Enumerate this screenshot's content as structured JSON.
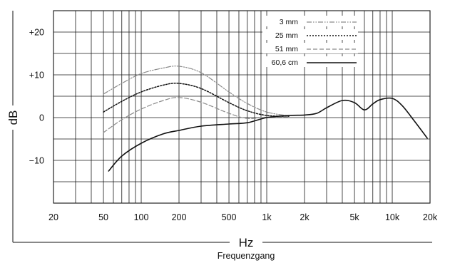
{
  "chart_data": {
    "type": "line",
    "title": "",
    "caption": "Frequenzgang",
    "xlabel": "Hz",
    "ylabel": "dB",
    "x_scale": "log",
    "xlim": [
      20,
      20000
    ],
    "ylim": [
      -20,
      25
    ],
    "grid": true,
    "legend_position": "top-right",
    "x_ticks": [
      {
        "value": 20,
        "label": "20"
      },
      {
        "value": 50,
        "label": "50"
      },
      {
        "value": 100,
        "label": "100"
      },
      {
        "value": 200,
        "label": "200"
      },
      {
        "value": 500,
        "label": "500"
      },
      {
        "value": 1000,
        "label": "1k"
      },
      {
        "value": 2000,
        "label": "2k"
      },
      {
        "value": 5000,
        "label": "5k"
      },
      {
        "value": 10000,
        "label": "10k"
      },
      {
        "value": 20000,
        "label": "20k"
      }
    ],
    "y_ticks": [
      {
        "value": 20,
        "label": "+20"
      },
      {
        "value": 10,
        "label": "+10"
      },
      {
        "value": 0,
        "label": "0"
      },
      {
        "value": -10,
        "label": "−10"
      }
    ],
    "series": [
      {
        "name": "3 mm",
        "style": "dashdotdot",
        "color": "#8a8a8a",
        "x": [
          50,
          70,
          100,
          150,
          200,
          300,
          500,
          700,
          1000,
          1500
        ],
        "y": [
          5.5,
          8,
          10.3,
          11.6,
          12,
          10.5,
          6,
          3.3,
          1.3,
          0.4
        ]
      },
      {
        "name": "25 mm",
        "style": "dotted",
        "color": "#111111",
        "x": [
          50,
          70,
          100,
          150,
          200,
          300,
          500,
          700,
          1000,
          1500
        ],
        "y": [
          1.3,
          3.8,
          6,
          7.6,
          8,
          6.8,
          3.5,
          1.6,
          0.5,
          0.3
        ]
      },
      {
        "name": "51 mm",
        "style": "dashed",
        "color": "#8a8a8a",
        "x": [
          50,
          70,
          100,
          150,
          200,
          300,
          500,
          700,
          1000,
          1500
        ],
        "y": [
          -3.5,
          -0.5,
          2,
          4,
          4.7,
          3.6,
          1,
          -0.2,
          0.1,
          0.2
        ]
      },
      {
        "name": "60,6 cm",
        "style": "solid",
        "color": "#111111",
        "x": [
          55,
          70,
          100,
          150,
          200,
          300,
          500,
          700,
          1000,
          1500,
          2000,
          2500,
          3000,
          4000,
          5000,
          6000,
          7000,
          8000,
          10000,
          12000,
          15000,
          19000
        ],
        "y": [
          -12.5,
          -9,
          -6,
          -3.8,
          -3,
          -2,
          -1.5,
          -1.2,
          0,
          0.5,
          0.6,
          1,
          2.3,
          4,
          3.5,
          1.8,
          3.2,
          4.2,
          4.5,
          2.8,
          -0.8,
          -4.8
        ]
      }
    ]
  }
}
